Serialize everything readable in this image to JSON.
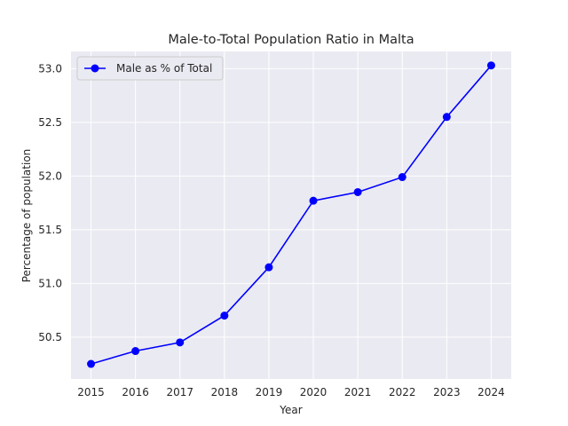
{
  "chart_data": {
    "type": "line",
    "title": "Male-to-Total Population Ratio in Malta",
    "xlabel": "Year",
    "ylabel": "Percentage of population",
    "x": [
      "2015",
      "2016",
      "2017",
      "2018",
      "2019",
      "2020",
      "2021",
      "2022",
      "2023",
      "2024"
    ],
    "series": [
      {
        "name": "Male as % of Total",
        "values": [
          50.25,
          50.37,
          50.45,
          50.7,
          51.15,
          51.77,
          51.85,
          51.99,
          52.55,
          53.03
        ],
        "color": "#0000ff",
        "marker": "circle"
      }
    ],
    "ylim": [
      50.11,
      53.16
    ],
    "yticks": [
      "50.5",
      "51.0",
      "51.5",
      "52.0",
      "52.5",
      "53.0"
    ],
    "grid": true,
    "legend": "upper left",
    "background_color": "#eaeaf2",
    "grid_color": "#ffffff"
  }
}
